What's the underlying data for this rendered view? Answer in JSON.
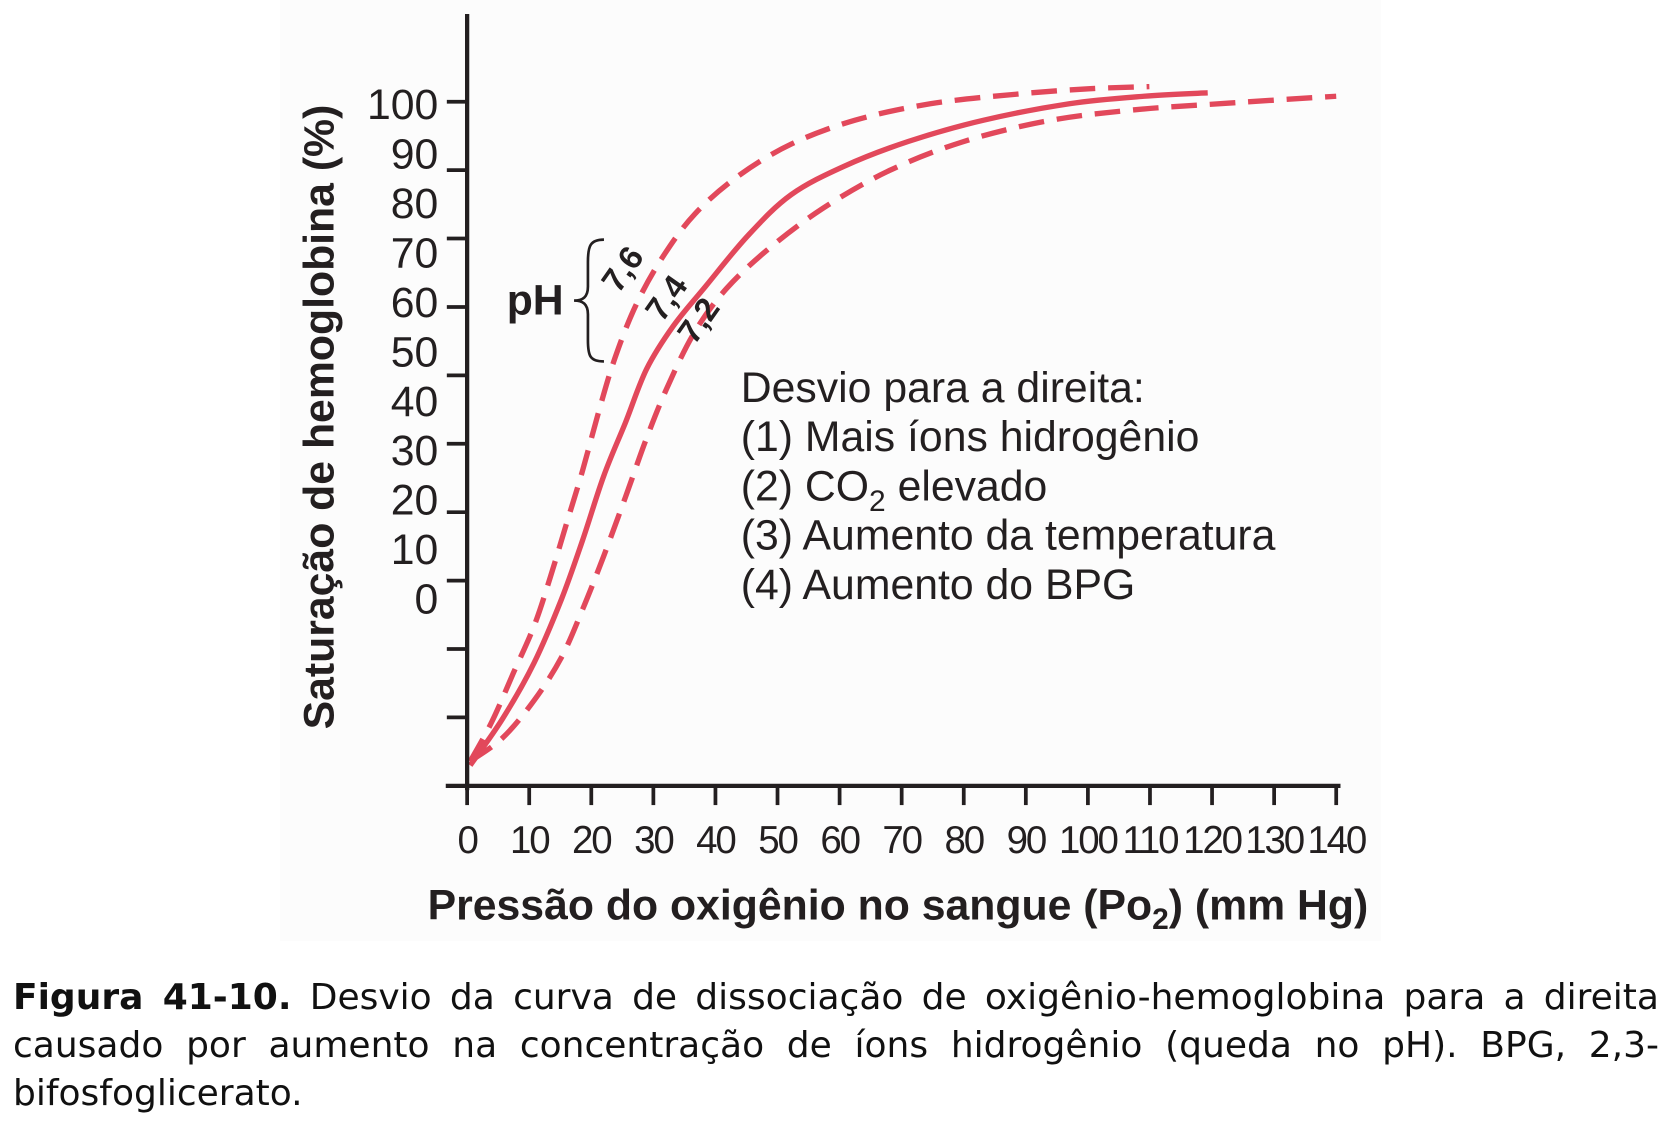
{
  "chart_data": {
    "type": "line",
    "xlabel": {
      "pre": "Pressão do oxigênio no sangue (Po",
      "sub": "2",
      "post": ") (mm Hg)"
    },
    "ylabel": "Saturação de hemoglobina (%)",
    "xlim": [
      0,
      140
    ],
    "ylim": [
      0,
      100
    ],
    "x_ticks": [
      0,
      10,
      20,
      30,
      40,
      50,
      60,
      70,
      80,
      90,
      100,
      110,
      120,
      130,
      140
    ],
    "y_ticks": [
      0,
      10,
      20,
      30,
      40,
      50,
      60,
      70,
      80,
      90,
      100
    ],
    "grid": false,
    "series": [
      {
        "name": "7,6",
        "line_style": "dashed",
        "color": "#e2485b",
        "points": [
          [
            0.5,
            3.6
          ],
          [
            4.0,
            9.4
          ],
          [
            7.4,
            16.4
          ],
          [
            10.8,
            23.4
          ],
          [
            13.4,
            30.5
          ],
          [
            16.0,
            38.3
          ],
          [
            18.6,
            46.1
          ],
          [
            21.2,
            54.7
          ],
          [
            23.8,
            62.5
          ],
          [
            27.2,
            70.3
          ],
          [
            31.5,
            77.3
          ],
          [
            36.7,
            83.6
          ],
          [
            43.6,
            89.1
          ],
          [
            52.2,
            93.8
          ],
          [
            62.5,
            97.3
          ],
          [
            74.6,
            99.7
          ],
          [
            88.4,
            101.1
          ],
          [
            100.4,
            101.9
          ],
          [
            109.9,
            102.2
          ]
        ]
      },
      {
        "name": "7,4",
        "line_style": "solid",
        "color": "#e2485b",
        "points": [
          [
            0.5,
            3.0
          ],
          [
            5.7,
            9.8
          ],
          [
            10.8,
            18.0
          ],
          [
            15.2,
            27.3
          ],
          [
            18.6,
            35.9
          ],
          [
            22.0,
            45.3
          ],
          [
            25.5,
            53.1
          ],
          [
            28.9,
            60.9
          ],
          [
            33.2,
            67.2
          ],
          [
            38.4,
            73.0
          ],
          [
            45.3,
            80.5
          ],
          [
            52.2,
            86.4
          ],
          [
            60.8,
            90.6
          ],
          [
            71.1,
            94.2
          ],
          [
            83.2,
            97.3
          ],
          [
            97.0,
            99.7
          ],
          [
            109.0,
            100.8
          ],
          [
            119.3,
            101.3
          ]
        ]
      },
      {
        "name": "7,2",
        "line_style": "dashed",
        "color": "#e2485b",
        "points": [
          [
            0.5,
            3.6
          ],
          [
            5.7,
            7.0
          ],
          [
            10.8,
            12.5
          ],
          [
            15.2,
            18.8
          ],
          [
            18.6,
            25.8
          ],
          [
            22.0,
            33.6
          ],
          [
            25.5,
            42.2
          ],
          [
            28.9,
            50.8
          ],
          [
            32.4,
            58.6
          ],
          [
            36.7,
            66.4
          ],
          [
            41.8,
            72.7
          ],
          [
            48.7,
            78.6
          ],
          [
            57.3,
            84.4
          ],
          [
            67.7,
            89.8
          ],
          [
            79.7,
            94.1
          ],
          [
            93.5,
            97.2
          ],
          [
            107.3,
            98.8
          ],
          [
            122.8,
            99.8
          ],
          [
            140.0,
            100.8
          ]
        ]
      }
    ],
    "annotations": {
      "ph_label": "pH",
      "shift_note": {
        "title": "Desvio para a direita:",
        "items": [
          "(1) Mais íons hidrogênio",
          {
            "pre": "(2) CO",
            "sub": "2",
            "post": " elevado"
          },
          "(3) Aumento da temperatura",
          "(4) Aumento do BPG"
        ]
      }
    }
  },
  "caption": {
    "label": "Figura 41-10.",
    "text": "Desvio da curva de dissociação de oxigênio-hemoglobina para a direita causado por aumento na concentração de íons hidrogênio (queda no pH). BPG, 2,3-bifosfoglicerato."
  },
  "colors": {
    "curve": "#e2485b",
    "text": "#231f20"
  }
}
